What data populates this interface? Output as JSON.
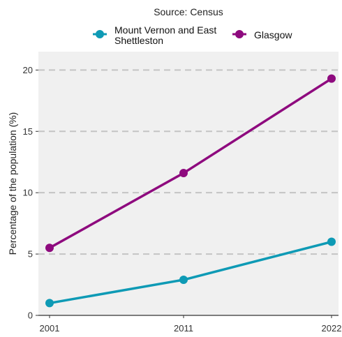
{
  "chart_data": {
    "type": "line",
    "subtitle": "Source: Census",
    "ylabel": "Percentage of the population (%)",
    "xlabel": "",
    "categories": [
      "2001",
      "2011",
      "2022"
    ],
    "x": [
      2001,
      2011,
      2022
    ],
    "yticks": [
      0,
      5,
      10,
      15,
      20
    ],
    "ylim": [
      0,
      21.5
    ],
    "grid": "horizontal dashed",
    "legend_position": "top",
    "series": [
      {
        "name_line1": "Mount Vernon and East",
        "name_line2": "Shettleston",
        "name": "Mount Vernon and East Shettleston",
        "color": "#0e9ab5",
        "values": [
          1.0,
          2.9,
          6.0
        ]
      },
      {
        "name": "Glasgow",
        "color": "#8e0a7e",
        "values": [
          5.5,
          11.6,
          19.3
        ]
      }
    ]
  }
}
